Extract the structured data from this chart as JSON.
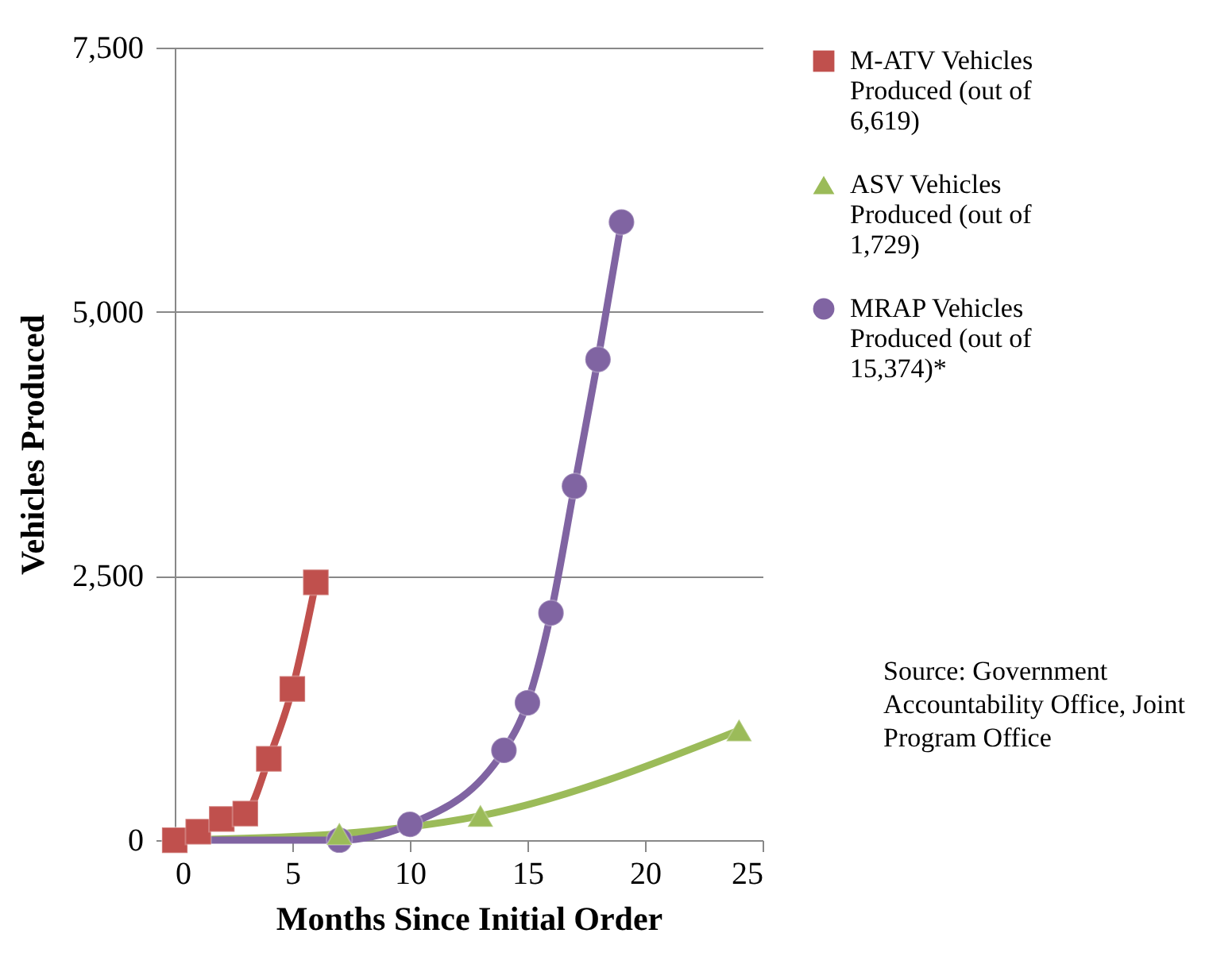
{
  "chart_data": {
    "type": "line",
    "xlabel": "Months Since Initial Order",
    "ylabel": "Vehicles Produced",
    "xlim": [
      0,
      25
    ],
    "xticks": [
      0,
      5,
      10,
      15,
      20,
      25
    ],
    "ylim": [
      0,
      7500
    ],
    "yticks": [
      0,
      {
        "value": 2500,
        "label": "2,500"
      },
      {
        "value": 5000,
        "label": "5,000"
      },
      {
        "value": 7500,
        "label": "7,500"
      }
    ],
    "grid": "y",
    "legend": "right",
    "line_style": "solid",
    "series": [
      {
        "name": "M-ATV Vehicles Produced (out of 6,619)",
        "color": "#c0504d",
        "marker": "square",
        "x": [
          0,
          1,
          2,
          3,
          4,
          5,
          6
        ],
        "values": [
          0,
          80,
          200,
          250,
          770,
          1430,
          2440
        ]
      },
      {
        "name": "ASV Vehicles Produced (out of 1,729)",
        "color": "#9bbb59",
        "marker": "triangle",
        "x": [
          0,
          7,
          13,
          24
        ],
        "values": [
          0,
          60,
          230,
          1040
        ]
      },
      {
        "name": "MRAP Vehicles Produced (out of 15,374)*",
        "color": "#8064a2",
        "marker": "circle",
        "x": [
          0,
          7,
          10,
          14,
          15,
          16,
          17,
          18,
          19
        ],
        "values": [
          0,
          0,
          150,
          850,
          1300,
          2150,
          3350,
          4550,
          5850
        ]
      }
    ],
    "annotations": [
      "Source: Government Accountability Office, Joint Program Office"
    ]
  }
}
